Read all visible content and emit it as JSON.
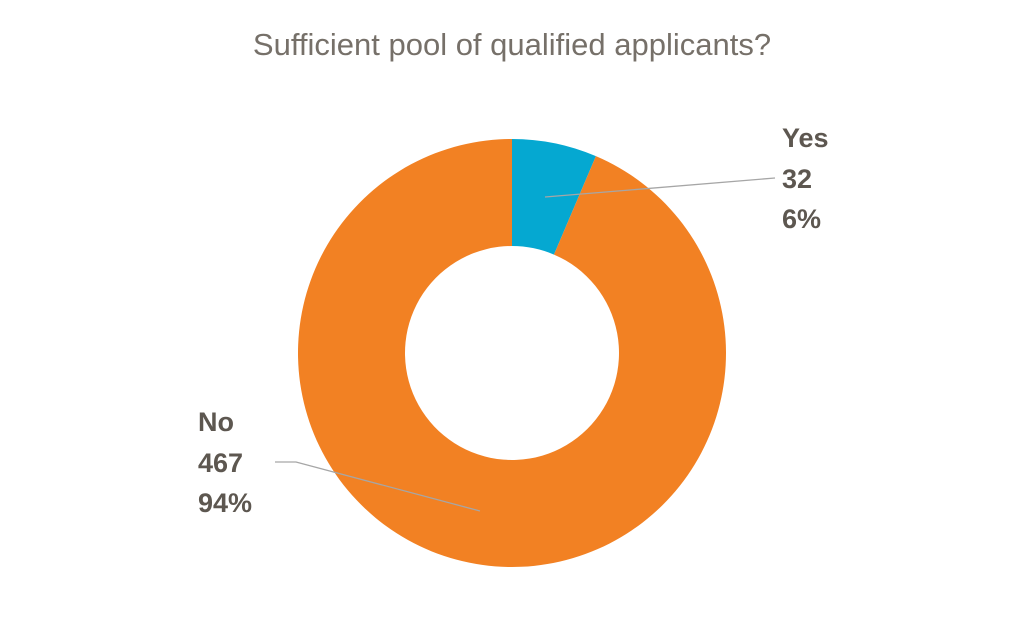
{
  "chart_data": {
    "type": "donut",
    "title": "Sufficient pool of qualified applicants?",
    "categories": [
      "Yes",
      "No"
    ],
    "values": [
      32,
      467
    ],
    "percent_labels": [
      "6%",
      "94%"
    ],
    "colors": [
      "#05a8d1",
      "#f28123"
    ]
  }
}
